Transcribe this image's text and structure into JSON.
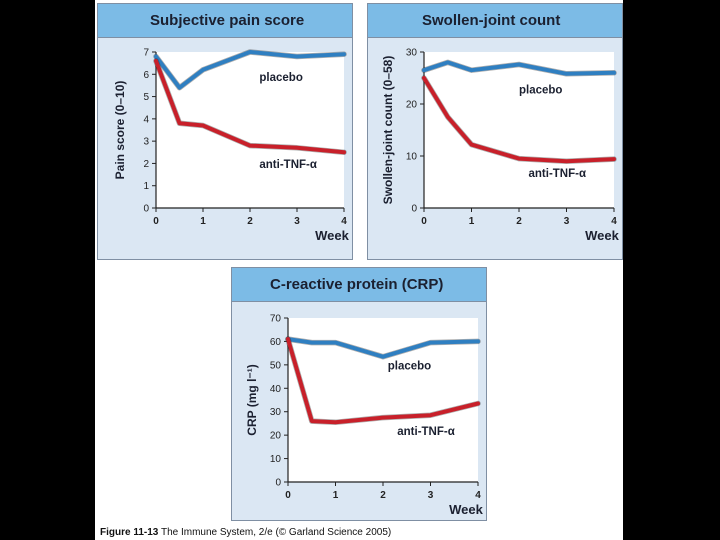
{
  "colors": {
    "placebo_line": "#2f7fc1",
    "treatment_line": "#c8202a",
    "panel_bg": "#dbe7f3",
    "header_bg": "#7cbbe6"
  },
  "caption": {
    "figure_number": "Figure 11-13",
    "text": "The Immune System, 2/e (© Garland Science 2005)"
  },
  "chart_data": [
    {
      "type": "line",
      "title": "Subjective pain score",
      "xlabel": "Week",
      "ylabel": "Pain score (0–10)",
      "xlim": [
        0,
        4
      ],
      "ylim": [
        0,
        7
      ],
      "xticks": [
        0,
        1,
        2,
        3,
        4
      ],
      "yticks": [
        0,
        1,
        2,
        3,
        4,
        5,
        6,
        7
      ],
      "grid": false,
      "series": [
        {
          "name": "placebo",
          "x": [
            0,
            0.5,
            1,
            2,
            3,
            4
          ],
          "values": [
            6.8,
            5.4,
            6.2,
            7.0,
            6.8,
            6.9
          ]
        },
        {
          "name": "anti-TNF-α",
          "x": [
            0,
            0.5,
            1,
            2,
            3,
            4
          ],
          "values": [
            6.6,
            3.8,
            3.7,
            2.8,
            2.7,
            2.5
          ]
        }
      ],
      "annotations": [
        {
          "text": "placebo",
          "x": 2.2,
          "y": 5.7
        },
        {
          "text": "anti-TNF-α",
          "x": 2.2,
          "y": 1.8
        }
      ]
    },
    {
      "type": "line",
      "title": "Swollen-joint count",
      "xlabel": "Week",
      "ylabel": "Swollen-joint count (0–58)",
      "xlim": [
        0,
        4
      ],
      "ylim": [
        0,
        30
      ],
      "xticks": [
        0,
        1,
        2,
        3,
        4
      ],
      "yticks": [
        0,
        10,
        20,
        30
      ],
      "grid": false,
      "series": [
        {
          "name": "placebo",
          "x": [
            0,
            0.5,
            1,
            2,
            3,
            4
          ],
          "values": [
            26.5,
            28.0,
            26.5,
            27.6,
            25.8,
            26.0
          ]
        },
        {
          "name": "anti-TNF-α",
          "x": [
            0,
            0.5,
            1,
            2,
            3,
            4
          ],
          "values": [
            25.0,
            17.5,
            12.2,
            9.5,
            9.0,
            9.4
          ]
        }
      ],
      "annotations": [
        {
          "text": "placebo",
          "x": 2.0,
          "y": 22.0
        },
        {
          "text": "anti-TNF-α",
          "x": 2.2,
          "y": 6.0
        }
      ]
    },
    {
      "type": "line",
      "title": "C-reactive protein (CRP)",
      "xlabel": "Week",
      "ylabel": "CRP (mg l⁻¹)",
      "xlim": [
        0,
        4
      ],
      "ylim": [
        0,
        70
      ],
      "xticks": [
        0,
        1,
        2,
        3,
        4
      ],
      "yticks": [
        0,
        10,
        20,
        30,
        40,
        50,
        60,
        70
      ],
      "grid": false,
      "series": [
        {
          "name": "placebo",
          "x": [
            0,
            0.5,
            1,
            2,
            3,
            4
          ],
          "values": [
            61,
            59.5,
            59.5,
            53.5,
            59.5,
            60
          ]
        },
        {
          "name": "anti-TNF-α",
          "x": [
            0,
            0.5,
            1,
            2,
            3,
            4
          ],
          "values": [
            61,
            26,
            25.5,
            27.5,
            28.5,
            33.5
          ]
        }
      ],
      "annotations": [
        {
          "text": "placebo",
          "x": 2.1,
          "y": 48.0
        },
        {
          "text": "anti-TNF-α",
          "x": 2.3,
          "y": 20.0
        }
      ]
    }
  ]
}
